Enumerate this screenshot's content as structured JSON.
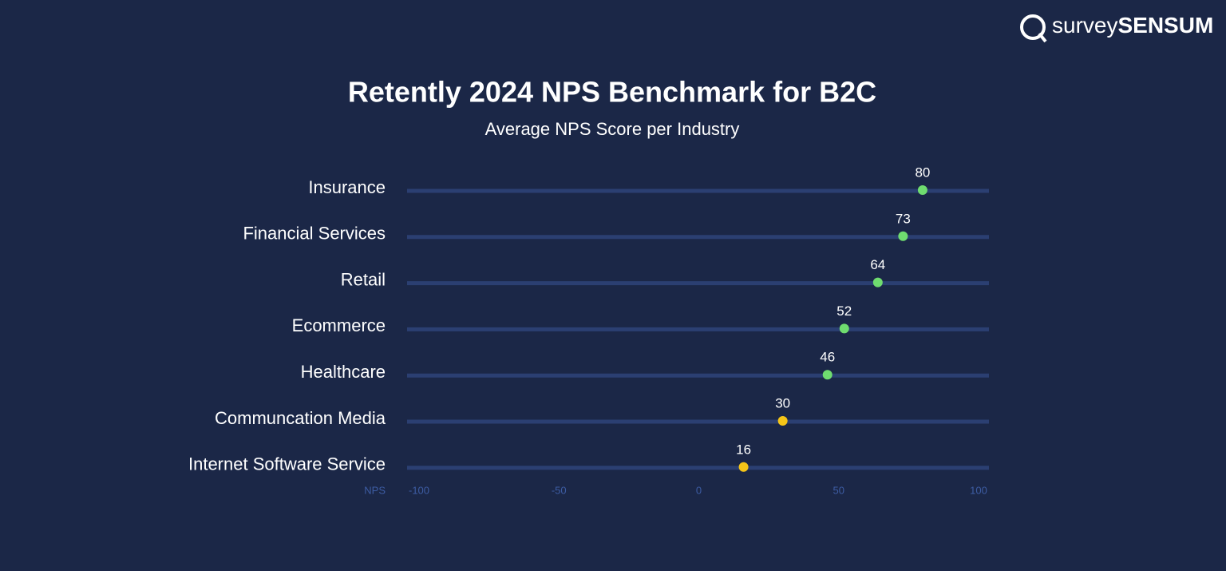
{
  "logo": {
    "light": "survey",
    "bold": "SENSUM"
  },
  "chart_data": {
    "type": "dot",
    "title": "Retently 2024 NPS Benchmark for B2C",
    "subtitle": "Average NPS Score per Industry",
    "categories": [
      "Insurance",
      "Financial Services",
      "Retail",
      "Ecommerce",
      "Healthcare",
      "Communcation Media",
      "Internet Software Service"
    ],
    "values": [
      80,
      73,
      64,
      52,
      46,
      30,
      16
    ],
    "colors": [
      "#6fdc6f",
      "#6fdc6f",
      "#6fdc6f",
      "#6fdc6f",
      "#6fdc6f",
      "#f5c518",
      "#f5c518"
    ],
    "x_label": "NPS",
    "xlim": [
      -100,
      100
    ],
    "xticks": [
      -100,
      -50,
      0,
      50,
      100
    ]
  }
}
